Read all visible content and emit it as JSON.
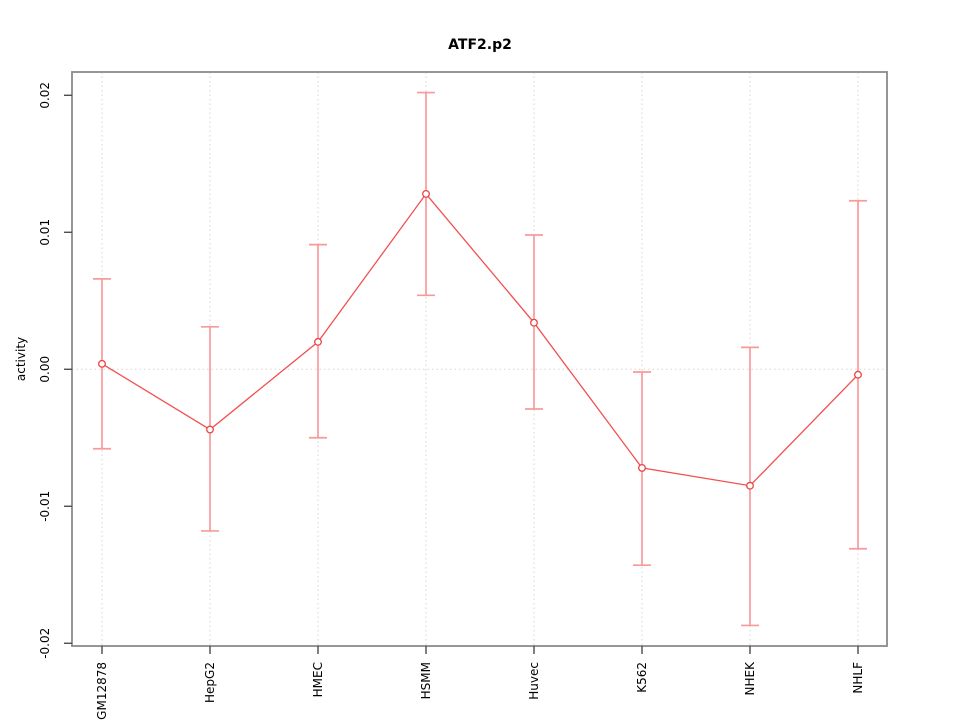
{
  "chart_data": {
    "type": "line",
    "title": "ATF2.p2",
    "ylabel": "activity",
    "xlabel": "",
    "categories": [
      "GM12878",
      "HepG2",
      "HMEC",
      "HSMM",
      "Huvec",
      "K562",
      "NHEK",
      "NHLF"
    ],
    "series": [
      {
        "name": "activity",
        "values": [
          0.0004,
          -0.0044,
          0.002,
          0.0128,
          0.0034,
          -0.0072,
          -0.0085,
          -0.0004
        ],
        "error_high": [
          0.0066,
          0.0031,
          0.0091,
          0.0202,
          0.0098,
          -0.0002,
          0.0016,
          0.0123
        ],
        "error_low": [
          -0.0058,
          -0.0118,
          -0.005,
          0.0054,
          -0.0029,
          -0.0143,
          -0.0187,
          -0.0131
        ]
      }
    ],
    "ylim": [
      -0.0202,
      0.0217
    ],
    "yticks": [
      -0.02,
      -0.01,
      0,
      0.01,
      0.02
    ],
    "ytick_labels": [
      "-0.02",
      "-0.01",
      "0.00",
      "0.01",
      "0.02"
    ],
    "grid": "vertical dotted guide per category, dotted horizontal line at y=0",
    "legend": "none",
    "marker": "open-circle",
    "colors": {
      "series_line": "#f25050",
      "error_bar": "#f79a9a",
      "marker_stroke": "#e84545",
      "marker_fill": "#ffffff",
      "frame": "#8a8a8a",
      "tick": "#4d4d4d",
      "grid": "#d4d4d4",
      "text": "#000000",
      "background": "#ffffff"
    }
  }
}
